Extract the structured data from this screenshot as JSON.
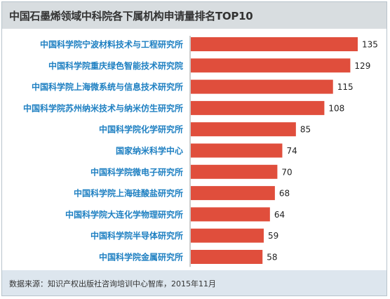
{
  "chart_data": {
    "type": "bar",
    "orientation": "horizontal",
    "title": "中国石墨烯领域中科院各下属机构申请量排名TOP10",
    "categories": [
      "中国科学院宁波材料技术与工程研究所",
      "中国科学院重庆绿色智能技术研究院",
      "中国科学院上海微系统与信息技术研究所",
      "中国科学院苏州纳米技术与纳米仿生研究所",
      "中国科学院化学研究所",
      "国家纳米科学中心",
      "中国科学院微电子研究所",
      "中国科学院上海硅酸盐研究所",
      "中国科学院大连化学物理研究所",
      "中国科学院半导体研究所",
      "中国科学院金属研究所"
    ],
    "values": [
      135,
      129,
      115,
      108,
      85,
      74,
      70,
      68,
      64,
      59,
      58
    ],
    "xlim": [
      0,
      135
    ],
    "grid": false,
    "bar_color": "#e04e3c",
    "label_color": "#1f80c2"
  },
  "source": "数据来源：知识产权出版社咨询培训中心智库，2015年11月"
}
